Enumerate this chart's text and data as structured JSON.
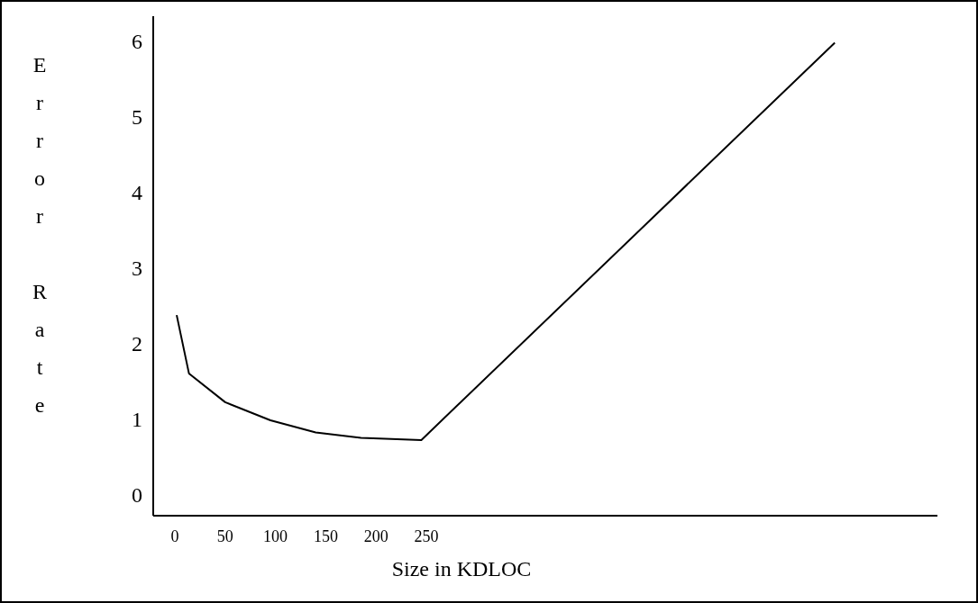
{
  "chart_data": {
    "type": "line",
    "xlabel": "Size in KDLOC",
    "ylabel": "Error Rate",
    "x": [
      1.8,
      14,
      50,
      95,
      140,
      185,
      245,
      656
    ],
    "values": [
      2.38,
      1.61,
      1.23,
      0.99,
      0.83,
      0.76,
      0.73,
      5.98
    ],
    "color": "#000000",
    "xlim": [
      -21.5,
      758
    ],
    "xticks": [
      0,
      50,
      100,
      150,
      200,
      250
    ],
    "ylim": [
      -0.27,
      6.33
    ],
    "yticks": [
      0,
      1,
      2,
      3,
      4,
      5,
      6
    ],
    "grid": false,
    "marker": "none",
    "line_style": "solid"
  }
}
